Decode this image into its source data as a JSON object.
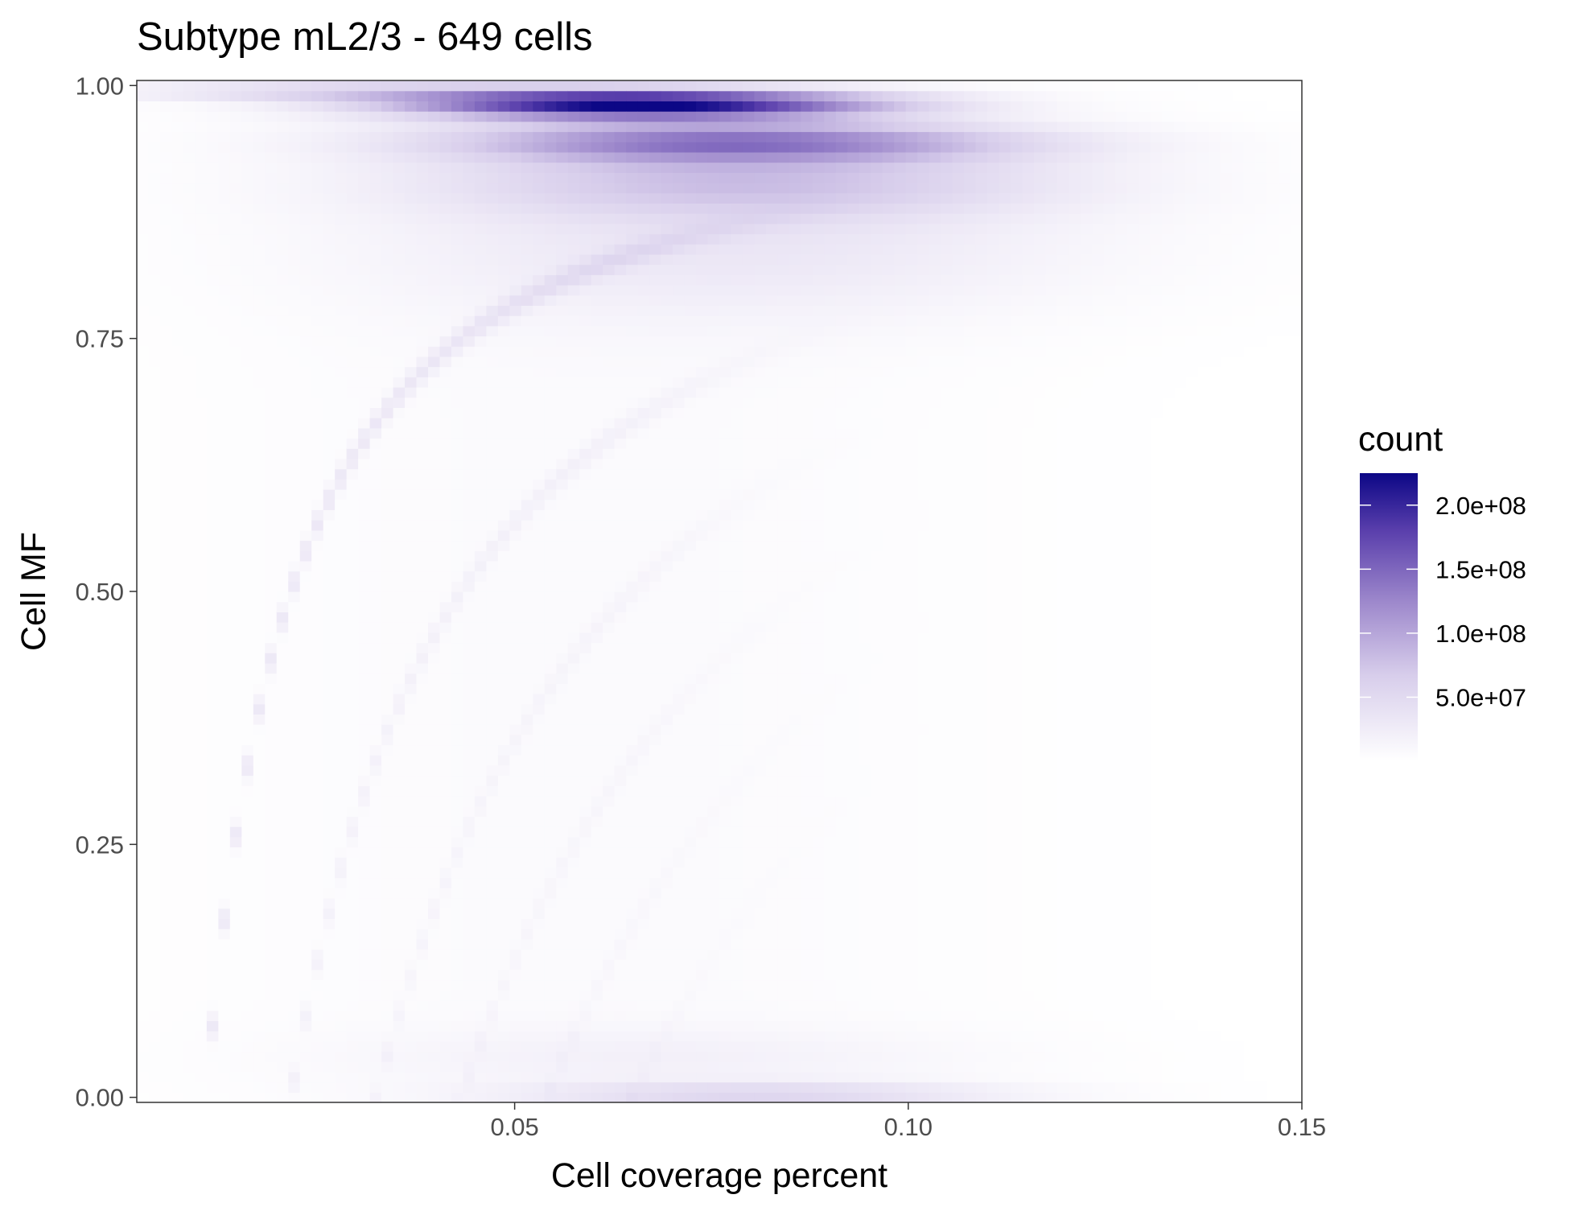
{
  "chart_data": {
    "type": "heatmap",
    "title": "Subtype mL2/3 - 649 cells",
    "xlabel": "Cell coverage percent",
    "ylabel": "Cell MF",
    "xlim": [
      0.002,
      0.15
    ],
    "ylim": [
      -0.005,
      1.005
    ],
    "x_ticks": [
      {
        "value": 0.05,
        "label": "0.05"
      },
      {
        "value": 0.1,
        "label": "0.10"
      },
      {
        "value": 0.15,
        "label": "0.15"
      }
    ],
    "y_ticks": [
      {
        "value": 0.0,
        "label": "0.00"
      },
      {
        "value": 0.25,
        "label": "0.25"
      },
      {
        "value": 0.5,
        "label": "0.50"
      },
      {
        "value": 0.75,
        "label": "0.75"
      },
      {
        "value": 1.0,
        "label": "1.00"
      }
    ],
    "grid": false,
    "legend": {
      "title": "count",
      "placement": "right",
      "min": 0,
      "max": 225000000,
      "ticks": [
        {
          "value": 50000000,
          "label": "5.0e+07"
        },
        {
          "value": 100000000,
          "label": "1.0e+08"
        },
        {
          "value": 150000000,
          "label": "1.5e+08"
        },
        {
          "value": 200000000,
          "label": "2.0e+08"
        }
      ]
    },
    "colors": {
      "low": "#ffffff",
      "mid": "#9e89cc",
      "high": "#0c0786"
    },
    "density_peaks": [
      {
        "x": 0.064,
        "y": 0.985,
        "count": 225000000
      },
      {
        "x": 0.075,
        "y": 0.945,
        "count": 120000000
      },
      {
        "x": 0.08,
        "y": 0.003,
        "count": 45000000
      }
    ]
  }
}
